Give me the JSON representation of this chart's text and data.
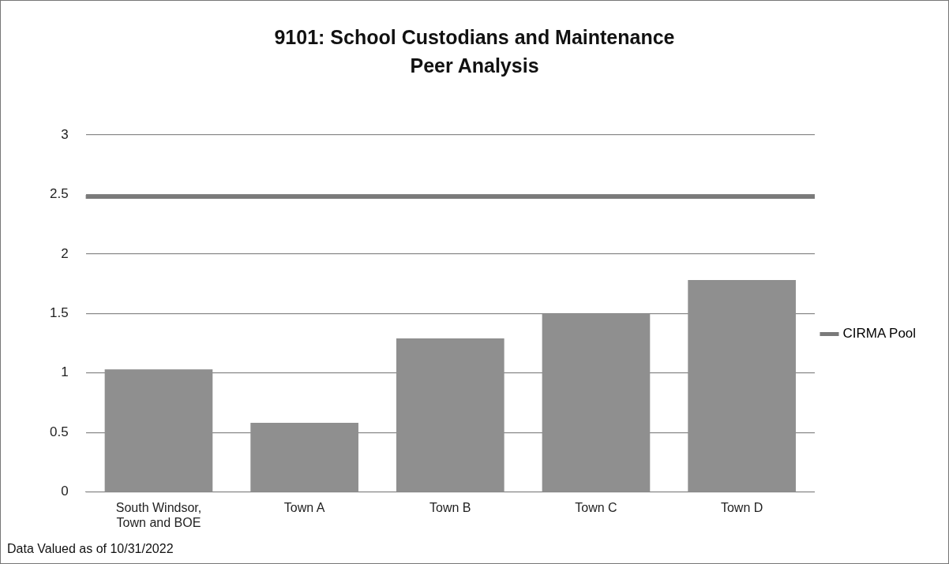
{
  "chart_data": {
    "type": "bar",
    "title": "9101: School Custodians and Maintenance Peer Analysis",
    "categories": [
      "South Windsor, Town and BOE",
      "Town A",
      "Town B",
      "Town C",
      "Town D"
    ],
    "values": [
      1.03,
      0.58,
      1.29,
      1.5,
      1.78
    ],
    "color": "#8f8f8f",
    "ref_lines": [
      {
        "axis": "y",
        "value": 2.48,
        "label": "CIRMA Pool",
        "color": "#7a7a7a"
      }
    ],
    "ylim": [
      0,
      3
    ],
    "yticks": [
      0,
      0.5,
      1,
      1.5,
      2,
      2.5,
      3
    ],
    "grid": "y",
    "legend": "right",
    "annotations": [
      "Data Valued as of 10/31/2022"
    ]
  }
}
